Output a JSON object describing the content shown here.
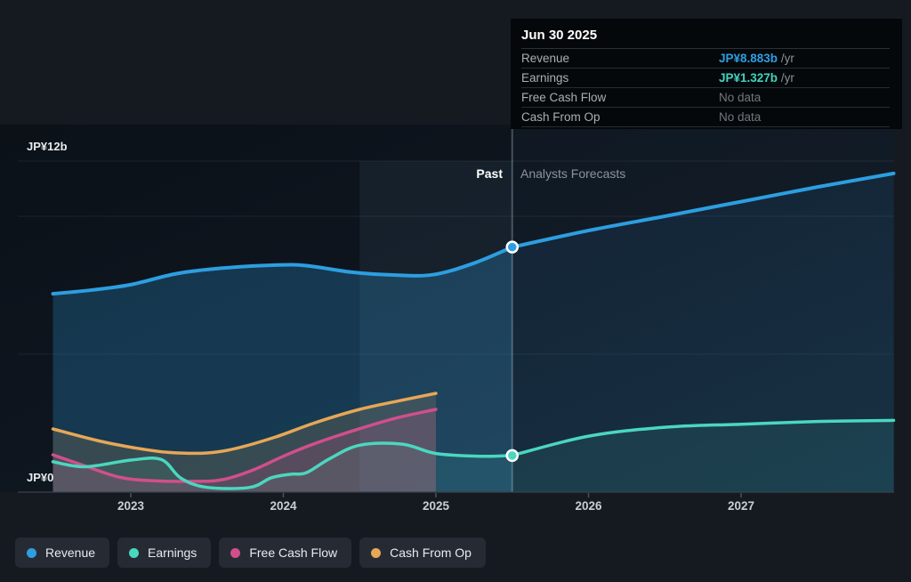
{
  "labels": {
    "past": "Past",
    "forecast": "Analysts Forecasts"
  },
  "tooltip": {
    "title": "Jun 30 2025",
    "rows": [
      {
        "label": "Revenue",
        "value": "JP¥8.883b",
        "suffix": " /yr"
      },
      {
        "label": "Earnings",
        "value": "JP¥1.327b",
        "suffix": " /yr"
      },
      {
        "label": "Free Cash Flow",
        "value": "No data",
        "suffix": ""
      },
      {
        "label": "Cash From Op",
        "value": "No data",
        "suffix": ""
      }
    ]
  },
  "chart_data": {
    "type": "line",
    "title": "Past and forecast Revenue, Earnings, Free Cash Flow and Cash From Op",
    "currency_unit": "JP¥ billions",
    "x_axis": {
      "ticks": [
        2023,
        2024,
        2025,
        2026,
        2027
      ],
      "labels": [
        "2023",
        "2024",
        "2025",
        "2026",
        "2027"
      ],
      "range": [
        2022.3,
        2028.0
      ]
    },
    "y_axis": {
      "label_top": "JP¥12b",
      "label_zero": "JP¥0",
      "range": [
        0,
        12
      ],
      "gridlines_b": [
        12,
        10,
        5
      ]
    },
    "divider_year": 2025.5,
    "highlight_band_years": [
      2024.5,
      2025.5
    ],
    "series": [
      {
        "name": "Revenue",
        "color": "#2d9ee0",
        "marker": {
          "x": 2025.5,
          "y": 8.883
        },
        "past": [
          [
            2022.49,
            7.19
          ],
          [
            2022.75,
            7.33
          ],
          [
            2023.0,
            7.52
          ],
          [
            2023.3,
            7.92
          ],
          [
            2023.6,
            8.12
          ],
          [
            2023.95,
            8.23
          ],
          [
            2024.15,
            8.21
          ],
          [
            2024.45,
            7.97
          ],
          [
            2024.72,
            7.87
          ],
          [
            2024.98,
            7.88
          ],
          [
            2025.25,
            8.3
          ],
          [
            2025.5,
            8.88
          ]
        ],
        "forecast": [
          [
            2025.5,
            8.88
          ],
          [
            2026.0,
            9.48
          ],
          [
            2026.5,
            10.0
          ],
          [
            2027.0,
            10.53
          ],
          [
            2027.5,
            11.06
          ],
          [
            2028.0,
            11.55
          ]
        ]
      },
      {
        "name": "Earnings",
        "color": "#4bd7bf",
        "marker": {
          "x": 2025.5,
          "y": 1.327
        },
        "past": [
          [
            2022.49,
            1.1
          ],
          [
            2022.7,
            0.92
          ],
          [
            2023.0,
            1.16
          ],
          [
            2023.2,
            1.18
          ],
          [
            2023.33,
            0.5
          ],
          [
            2023.5,
            0.17
          ],
          [
            2023.78,
            0.17
          ],
          [
            2023.92,
            0.52
          ],
          [
            2024.05,
            0.65
          ],
          [
            2024.15,
            0.7
          ],
          [
            2024.3,
            1.2
          ],
          [
            2024.5,
            1.7
          ],
          [
            2024.78,
            1.74
          ],
          [
            2025.0,
            1.4
          ],
          [
            2025.3,
            1.3
          ],
          [
            2025.5,
            1.33
          ]
        ],
        "forecast": [
          [
            2025.5,
            1.33
          ],
          [
            2026.0,
            2.03
          ],
          [
            2026.5,
            2.35
          ],
          [
            2027.0,
            2.46
          ],
          [
            2027.5,
            2.56
          ],
          [
            2028.0,
            2.6
          ]
        ]
      },
      {
        "name": "Free Cash Flow",
        "color": "#d14f8b",
        "past": [
          [
            2022.49,
            1.35
          ],
          [
            2022.7,
            0.95
          ],
          [
            2022.92,
            0.55
          ],
          [
            2023.12,
            0.42
          ],
          [
            2023.4,
            0.39
          ],
          [
            2023.6,
            0.45
          ],
          [
            2023.8,
            0.8
          ],
          [
            2024.0,
            1.3
          ],
          [
            2024.2,
            1.75
          ],
          [
            2024.5,
            2.3
          ],
          [
            2024.75,
            2.7
          ],
          [
            2025.0,
            3.0
          ]
        ],
        "forecast": []
      },
      {
        "name": "Cash From Op",
        "color": "#e7a757",
        "past": [
          [
            2022.49,
            2.29
          ],
          [
            2022.78,
            1.87
          ],
          [
            2023.02,
            1.61
          ],
          [
            2023.25,
            1.44
          ],
          [
            2023.5,
            1.42
          ],
          [
            2023.7,
            1.6
          ],
          [
            2023.95,
            2.0
          ],
          [
            2024.2,
            2.5
          ],
          [
            2024.5,
            3.0
          ],
          [
            2024.75,
            3.3
          ],
          [
            2025.0,
            3.58
          ]
        ],
        "forecast": []
      }
    ]
  }
}
